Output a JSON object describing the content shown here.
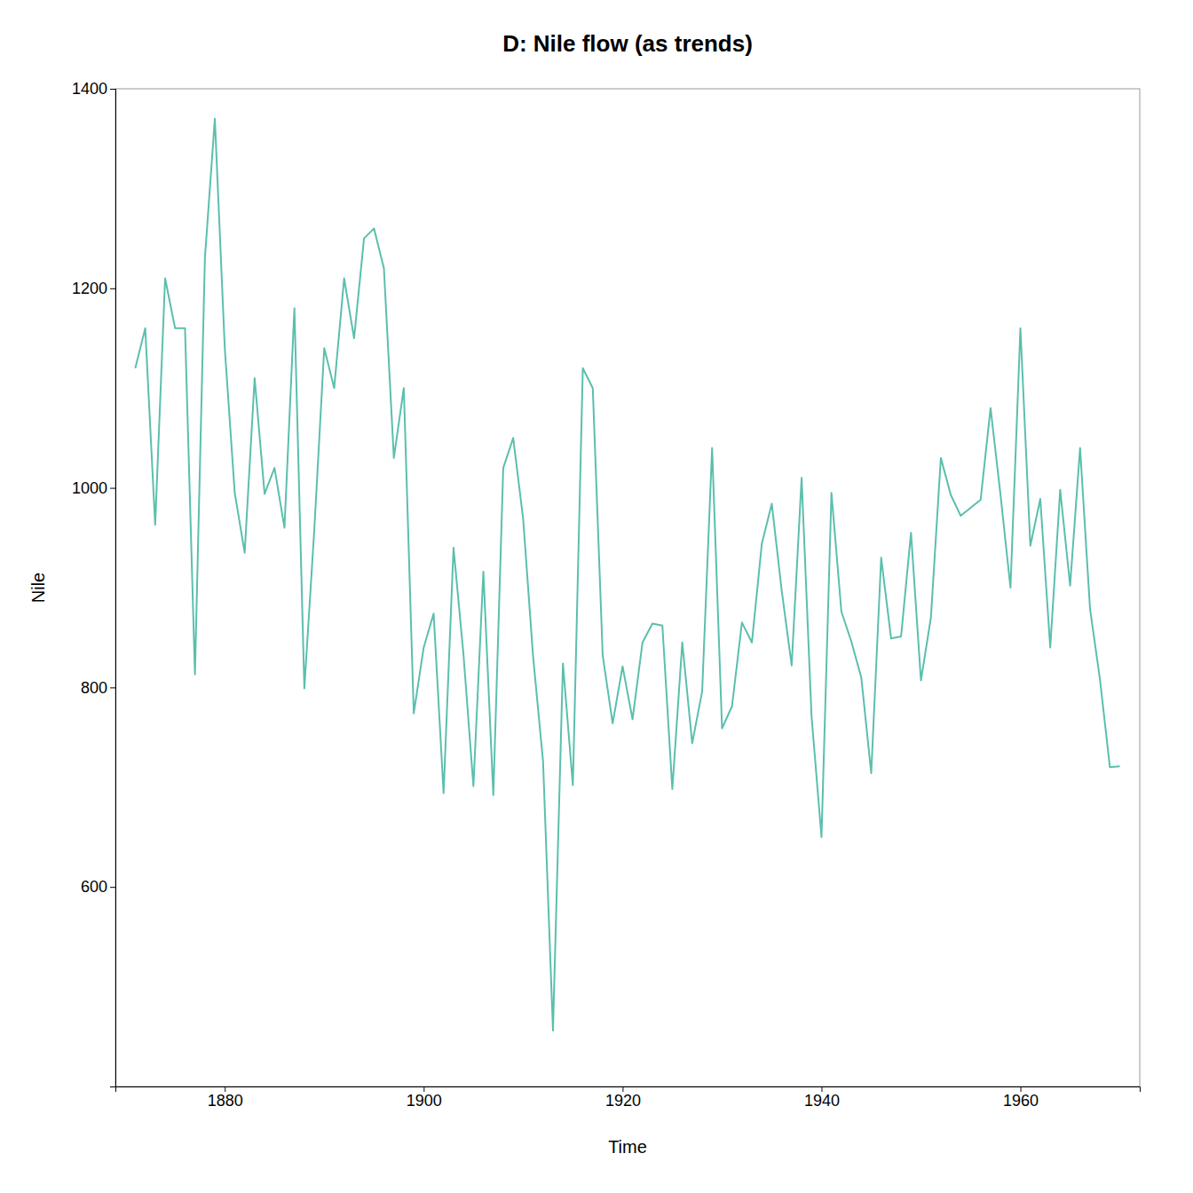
{
  "chart_data": {
    "type": "line",
    "title": "D: Nile flow (as trends)",
    "xlabel": "Time",
    "ylabel": "Nile",
    "color": "#5bbfad",
    "x": [
      1871,
      1872,
      1873,
      1874,
      1875,
      1876,
      1877,
      1878,
      1879,
      1880,
      1881,
      1882,
      1883,
      1884,
      1885,
      1886,
      1887,
      1888,
      1889,
      1890,
      1891,
      1892,
      1893,
      1894,
      1895,
      1896,
      1897,
      1898,
      1899,
      1900,
      1901,
      1902,
      1903,
      1904,
      1905,
      1906,
      1907,
      1908,
      1909,
      1910,
      1911,
      1912,
      1913,
      1914,
      1915,
      1916,
      1917,
      1918,
      1919,
      1920,
      1921,
      1922,
      1923,
      1924,
      1925,
      1926,
      1927,
      1928,
      1929,
      1930,
      1931,
      1932,
      1933,
      1934,
      1935,
      1936,
      1937,
      1938,
      1939,
      1940,
      1941,
      1942,
      1943,
      1944,
      1945,
      1946,
      1947,
      1948,
      1949,
      1950,
      1951,
      1952,
      1953,
      1954,
      1955,
      1956,
      1957,
      1958,
      1959,
      1960,
      1961,
      1962,
      1963,
      1964,
      1965,
      1966,
      1967,
      1968,
      1969,
      1970
    ],
    "values": [
      1120,
      1160,
      963,
      1210,
      1160,
      1160,
      813,
      1230,
      1370,
      1140,
      995,
      935,
      1110,
      994,
      1020,
      960,
      1180,
      799,
      958,
      1140,
      1100,
      1210,
      1150,
      1250,
      1260,
      1220,
      1030,
      1100,
      774,
      840,
      874,
      694,
      940,
      833,
      701,
      916,
      692,
      1020,
      1050,
      969,
      831,
      726,
      456,
      824,
      702,
      1120,
      1100,
      832,
      764,
      821,
      768,
      845,
      864,
      862,
      698,
      845,
      744,
      796,
      1040,
      759,
      781,
      865,
      845,
      944,
      984,
      897,
      822,
      1010,
      771,
      650,
      995,
      876,
      846,
      810,
      714,
      930,
      849,
      851,
      955,
      807,
      870,
      1030,
      993,
      972,
      980,
      988,
      1080,
      993,
      900,
      1160,
      942,
      989,
      840,
      998,
      902,
      1040,
      879,
      808,
      720,
      721
    ],
    "xlim": [
      1869,
      1972
    ],
    "ylim": [
      400,
      1400
    ],
    "xticks": [
      1880,
      1900,
      1920,
      1940,
      1960
    ],
    "yticks": [
      600,
      800,
      1000,
      1200,
      1400
    ],
    "grid": false
  }
}
